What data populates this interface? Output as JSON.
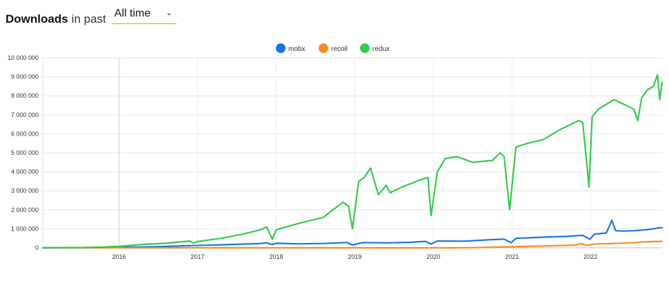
{
  "header": {
    "title_strong": "Downloads",
    "title_rest": "in past",
    "period": "All time"
  },
  "colors": {
    "mobx": "#1a73e8",
    "recoil": "#fb8c1e",
    "redux": "#2fcc47"
  },
  "chart_data": {
    "type": "line",
    "title": "",
    "xlabel": "",
    "ylabel": "",
    "ylim": [
      0,
      10000000
    ],
    "yticks": [
      0,
      1000000,
      2000000,
      3000000,
      4000000,
      5000000,
      6000000,
      7000000,
      8000000,
      9000000,
      10000000
    ],
    "ytick_labels": [
      "0",
      "1 000 000",
      "2 000 000",
      "3 000 000",
      "4 000 000",
      "5 000 000",
      "6 000 000",
      "7 000 000",
      "8 000 000",
      "9 000 000",
      "10 000 000"
    ],
    "xlim": [
      2015.03,
      2022.91
    ],
    "xticks": [
      2016,
      2017,
      2018,
      2019,
      2020,
      2021,
      2022
    ],
    "xtick_labels": [
      "2016",
      "2017",
      "2018",
      "2019",
      "2020",
      "2021",
      "2022"
    ],
    "legend_position": "top-center",
    "grid": true,
    "series": [
      {
        "name": "mobx",
        "color": "#1a73e8",
        "x": [
          2015.03,
          2015.5,
          2016.0,
          2016.5,
          2016.95,
          2017.3,
          2017.6,
          2017.8,
          2017.88,
          2017.95,
          2018.0,
          2018.3,
          2018.6,
          2018.9,
          2018.97,
          2019.1,
          2019.4,
          2019.7,
          2019.9,
          2019.97,
          2020.05,
          2020.4,
          2020.7,
          2020.9,
          2020.99,
          2021.05,
          2021.4,
          2021.7,
          2021.9,
          2021.99,
          2022.05,
          2022.2,
          2022.27,
          2022.32,
          2022.4,
          2022.55,
          2022.7,
          2022.8,
          2022.85,
          2022.91
        ],
        "y": [
          0,
          5000,
          30000,
          60000,
          120000,
          160000,
          200000,
          230000,
          260000,
          170000,
          240000,
          210000,
          230000,
          280000,
          150000,
          280000,
          260000,
          290000,
          340000,
          200000,
          360000,
          350000,
          420000,
          460000,
          270000,
          500000,
          560000,
          600000,
          660000,
          450000,
          720000,
          780000,
          1450000,
          900000,
          880000,
          900000,
          950000,
          1000000,
          1040000,
          1060000
        ]
      },
      {
        "name": "recoil",
        "color": "#fb8c1e",
        "x": [
          2015.03,
          2020.3,
          2020.6,
          2020.9,
          2021.2,
          2021.5,
          2021.8,
          2021.88,
          2021.95,
          2022.05,
          2022.3,
          2022.5,
          2022.7,
          2022.8,
          2022.91
        ],
        "y": [
          0,
          0,
          15000,
          50000,
          80000,
          110000,
          140000,
          220000,
          130000,
          200000,
          230000,
          260000,
          310000,
          330000,
          340000
        ]
      },
      {
        "name": "redux",
        "color": "#2fcc47",
        "x": [
          2015.03,
          2015.5,
          2015.8,
          2016.0,
          2016.3,
          2016.6,
          2016.9,
          2016.95,
          2017.0,
          2017.3,
          2017.55,
          2017.8,
          2017.88,
          2017.95,
          2018.0,
          2018.3,
          2018.6,
          2018.85,
          2018.92,
          2018.97,
          2019.05,
          2019.12,
          2019.2,
          2019.3,
          2019.4,
          2019.45,
          2019.6,
          2019.85,
          2019.93,
          2019.97,
          2020.05,
          2020.15,
          2020.3,
          2020.5,
          2020.75,
          2020.85,
          2020.9,
          2020.97,
          2021.05,
          2021.2,
          2021.4,
          2021.6,
          2021.85,
          2021.9,
          2021.95,
          2021.98,
          2022.02,
          2022.1,
          2022.3,
          2022.45,
          2022.55,
          2022.6,
          2022.65,
          2022.72,
          2022.8,
          2022.85,
          2022.88,
          2022.91
        ],
        "y": [
          0,
          10000,
          40000,
          80000,
          180000,
          240000,
          360000,
          250000,
          330000,
          500000,
          700000,
          950000,
          1100000,
          450000,
          950000,
          1300000,
          1600000,
          2400000,
          2200000,
          1000000,
          3500000,
          3700000,
          4200000,
          2800000,
          3300000,
          2900000,
          3200000,
          3600000,
          3700000,
          1700000,
          4000000,
          4700000,
          4800000,
          4500000,
          4600000,
          5000000,
          4800000,
          2000000,
          5300000,
          5500000,
          5700000,
          6200000,
          6700000,
          6600000,
          4500000,
          3200000,
          6900000,
          7300000,
          7800000,
          7500000,
          7300000,
          6700000,
          7900000,
          8300000,
          8500000,
          9100000,
          7800000,
          8700000
        ]
      }
    ]
  }
}
